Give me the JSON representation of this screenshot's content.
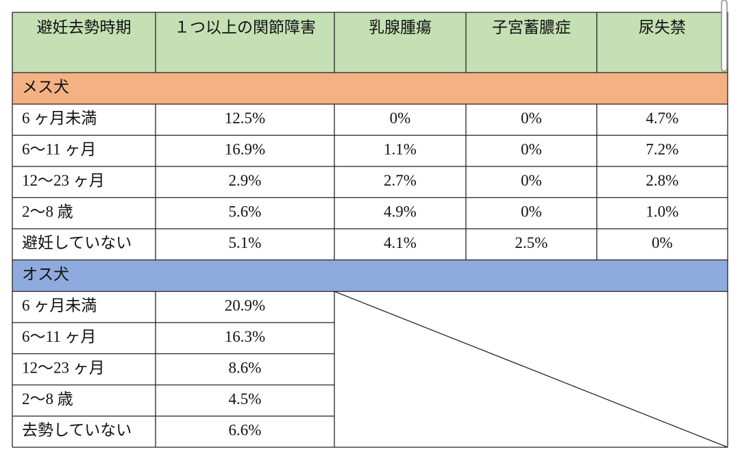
{
  "table": {
    "header": [
      "避妊去勢時期",
      "１つ以上の関節障害",
      "乳腺腫瘍",
      "子宮蓄膿症",
      "尿失禁"
    ],
    "sections": [
      {
        "title": "メス犬",
        "rows": [
          [
            "6 ヶ月未満",
            "12.5%",
            "0%",
            "0%",
            "4.7%"
          ],
          [
            "6～11 ヶ月",
            "16.9%",
            "1.1%",
            "0%",
            "7.2%"
          ],
          [
            "12～23 ヶ月",
            "2.9%",
            "2.7%",
            "0%",
            "2.8%"
          ],
          [
            "2～8 歳",
            "5.6%",
            "4.9%",
            "0%",
            "1.0%"
          ],
          [
            "避妊していない",
            "5.1%",
            "4.1%",
            "2.5%",
            "0%"
          ]
        ]
      },
      {
        "title": "オス犬",
        "rows": [
          [
            "6 ヶ月未満",
            "20.9%"
          ],
          [
            "6～11 ヶ月",
            "16.3%"
          ],
          [
            "12～23 ヶ月",
            "8.6%"
          ],
          [
            "2～8 歳",
            "4.5%"
          ],
          [
            "去勢していない",
            "6.6%"
          ]
        ]
      }
    ]
  }
}
